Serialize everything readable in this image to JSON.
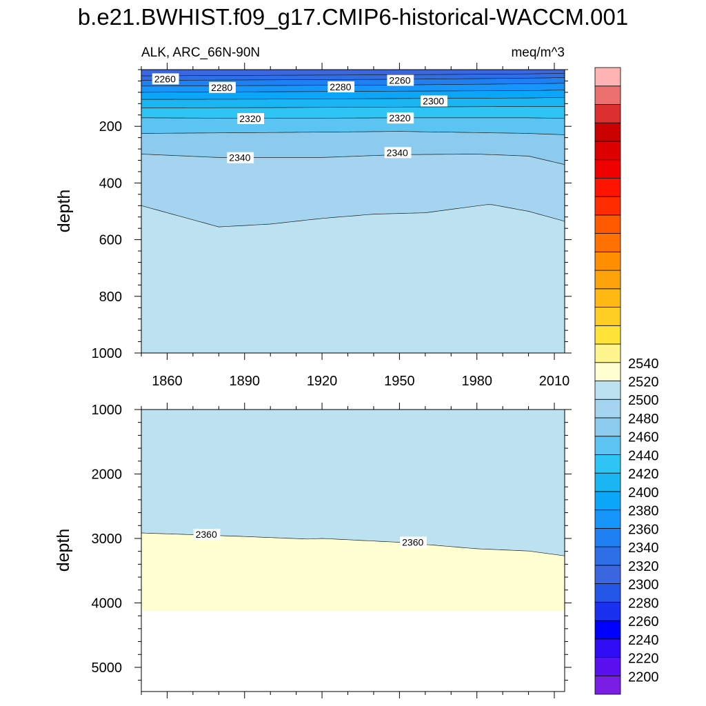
{
  "title": "b.e21.BWHIST.f09_g17.CMIP6-historical-WACCM.001",
  "subtitle_left": "ALK, ARC_66N-90N",
  "subtitle_right": "meq/m^3",
  "chart_data": [
    {
      "type": "heatmap",
      "panel": "upper (0-1000 m)",
      "ylabel": "depth",
      "y_reversed": true,
      "xlim": [
        1850,
        2014
      ],
      "ylim": [
        0,
        1000
      ],
      "x_ticks": [
        1860,
        1890,
        1920,
        1950,
        1980,
        2010
      ],
      "y_ticks": [
        200,
        400,
        600,
        800,
        1000
      ],
      "contour_levels": [
        {
          "level": 2260,
          "depth": [
            [
              1850,
              22
            ],
            [
              1900,
              20
            ],
            [
              1950,
              18
            ],
            [
              2000,
              15
            ],
            [
              2014,
              13
            ]
          ]
        },
        {
          "level": 2270,
          "depth": [
            [
              1850,
              38
            ],
            [
              1900,
              36
            ],
            [
              1950,
              34
            ],
            [
              2000,
              30
            ],
            [
              2014,
              28
            ]
          ]
        },
        {
          "level": 2280,
          "depth": [
            [
              1850,
              58
            ],
            [
              1900,
              56
            ],
            [
              1950,
              54
            ],
            [
              2000,
              50
            ],
            [
              2014,
              48
            ]
          ]
        },
        {
          "level": 2290,
          "depth": [
            [
              1850,
              80
            ],
            [
              1900,
              78
            ],
            [
              1950,
              76
            ],
            [
              2000,
              74
            ],
            [
              2014,
              72
            ]
          ]
        },
        {
          "level": 2300,
          "depth": [
            [
              1850,
              105
            ],
            [
              1900,
              104
            ],
            [
              1950,
              102
            ],
            [
              2000,
              100
            ],
            [
              2014,
              98
            ]
          ]
        },
        {
          "level": 2310,
          "depth": [
            [
              1850,
              135
            ],
            [
              1900,
              134
            ],
            [
              1950,
              132
            ],
            [
              2000,
              130
            ],
            [
              2014,
              130
            ]
          ]
        },
        {
          "level": 2320,
          "depth": [
            [
              1850,
              170
            ],
            [
              1900,
              172
            ],
            [
              1950,
              170
            ],
            [
              2000,
              170
            ],
            [
              2014,
              172
            ]
          ]
        },
        {
          "level": 2330,
          "depth": [
            [
              1850,
              225
            ],
            [
              1900,
              222
            ],
            [
              1950,
              218
            ],
            [
              2000,
              225
            ],
            [
              2014,
              230
            ]
          ]
        },
        {
          "level": 2340,
          "depth": [
            [
              1850,
              298
            ],
            [
              1880,
              310
            ],
            [
              1920,
              310
            ],
            [
              1950,
              300
            ],
            [
              1980,
              298
            ],
            [
              2000,
              305
            ],
            [
              2014,
              335
            ]
          ]
        },
        {
          "level": 2350,
          "depth": [
            [
              1850,
              480
            ],
            [
              1870,
              530
            ],
            [
              1880,
              555
            ],
            [
              1900,
              545
            ],
            [
              1920,
              525
            ],
            [
              1940,
              510
            ],
            [
              1960,
              505
            ],
            [
              1985,
              475
            ],
            [
              2000,
              500
            ],
            [
              2014,
              535
            ]
          ]
        }
      ],
      "contour_labels": [
        {
          "text": "2260",
          "x": 1855,
          "y": 40
        },
        {
          "text": "2280",
          "x": 1877,
          "y": 70
        },
        {
          "text": "2280",
          "x": 1923,
          "y": 68
        },
        {
          "text": "2260",
          "x": 1946,
          "y": 45
        },
        {
          "text": "2300",
          "x": 1959,
          "y": 118
        },
        {
          "text": "2320",
          "x": 1888,
          "y": 180
        },
        {
          "text": "2320",
          "x": 1946,
          "y": 178
        },
        {
          "text": "2340",
          "x": 1884,
          "y": 318
        },
        {
          "text": "2340",
          "x": 1945,
          "y": 300
        }
      ]
    },
    {
      "type": "heatmap",
      "panel": "lower (1000-5375 m)",
      "ylabel": "depth",
      "y_reversed": true,
      "xlim": [
        1850,
        2014
      ],
      "ylim": [
        1000,
        5375
      ],
      "y_ticks": [
        1000,
        2000,
        3000,
        4000,
        5000
      ],
      "ocean_bottom_depth": 4125,
      "contour_levels": [
        {
          "level": 2360,
          "depth": [
            [
              1850,
              2915
            ],
            [
              1880,
              2955
            ],
            [
              1915,
              3010
            ],
            [
              1920,
              3000
            ],
            [
              1950,
              3060
            ],
            [
              1980,
              3160
            ],
            [
              2000,
              3195
            ],
            [
              2014,
              3270
            ]
          ]
        }
      ],
      "contour_labels": [
        {
          "text": "2360",
          "x": 1871,
          "y": 2970
        },
        {
          "text": "2360",
          "x": 1951,
          "y": 3090
        }
      ]
    }
  ],
  "colorbar": {
    "colors": [
      "#7a1ee6",
      "#5b10f0",
      "#2f0cf4",
      "#0000ff",
      "#1a32f0",
      "#2456e8",
      "#3a66e0",
      "#2e6ee6",
      "#1e80f2",
      "#1696fa",
      "#0ca6f8",
      "#1ab6f4",
      "#2ec4f4",
      "#5cc4f2",
      "#8ccaee",
      "#a4d4f0",
      "#bce2f2",
      "#ffffd2",
      "#fff590",
      "#ffe338",
      "#ffce24",
      "#ffb814",
      "#ffa30a",
      "#ff8e00",
      "#ff7100",
      "#ff5a00",
      "#ff2d00",
      "#ff1400",
      "#f00000",
      "#dc0000",
      "#c80000",
      "#dc2f2f",
      "#ec7070",
      "#ffb4b4"
    ],
    "labels": [
      "2200",
      "2220",
      "2240",
      "2260",
      "2280",
      "2300",
      "2320",
      "2340",
      "2360",
      "2380",
      "2400",
      "2420",
      "2440",
      "2460",
      "2480",
      "2500",
      "2520",
      "2540"
    ]
  }
}
